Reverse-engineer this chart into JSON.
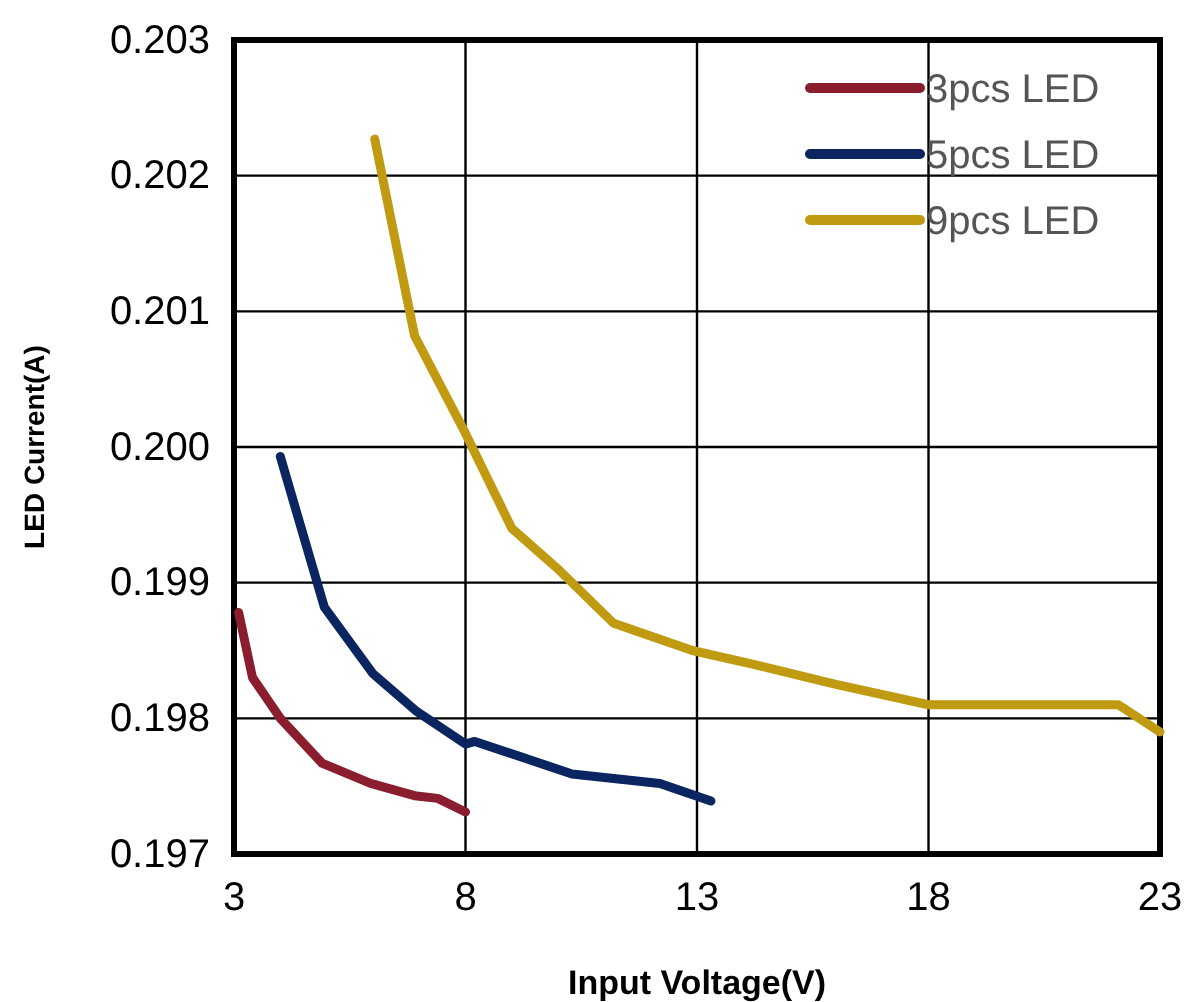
{
  "chart_data": {
    "type": "line",
    "xlabel": "Input Voltage(V)",
    "ylabel": "LED Current(A)",
    "xlim": [
      3,
      23
    ],
    "xticks": [
      3,
      8,
      13,
      18,
      23
    ],
    "ylim": [
      0.197,
      0.203
    ],
    "yticks": [
      {
        "value": 0.197,
        "label": "0.197"
      },
      {
        "value": 0.198,
        "label": "0.198"
      },
      {
        "value": 0.199,
        "label": "0.199"
      },
      {
        "value": 0.2,
        "label": "0.200"
      },
      {
        "value": 0.201,
        "label": "0.201"
      },
      {
        "value": 0.202,
        "label": "0.202"
      },
      {
        "value": 0.203,
        "label": "0.203"
      }
    ],
    "grid": true,
    "legend": "top right",
    "marker": "none",
    "line_style": "solid",
    "series": [
      {
        "name": "3pcs LED",
        "color": "#8b1e2e",
        "x": [
          3.1,
          3.4,
          4.0,
          4.9,
          5.95,
          6.9,
          7.4,
          8.0
        ],
        "values": [
          0.19878,
          0.1983,
          0.198,
          0.19767,
          0.19752,
          0.19743,
          0.19741,
          0.19731
        ]
      },
      {
        "name": "5pcs LED",
        "color": "#0a2560",
        "x": [
          4.0,
          4.95,
          6.0,
          6.95,
          8.0,
          8.2,
          10.3,
          12.2,
          13.3
        ],
        "values": [
          0.19993,
          0.19882,
          0.19833,
          0.19805,
          0.19781,
          0.19783,
          0.19759,
          0.19752,
          0.19739
        ]
      },
      {
        "name": "9pcs LED",
        "color": "#c09a10",
        "x": [
          6.04,
          6.9,
          8.0,
          9.0,
          10.0,
          11.2,
          12.9,
          14.2,
          16.0,
          18.0,
          22.1,
          23.0
        ],
        "values": [
          0.20227,
          0.20082,
          0.2001,
          0.1994,
          0.1991,
          0.1987,
          0.1985,
          0.1984,
          0.19825,
          0.1981,
          0.1981,
          0.1979
        ]
      }
    ]
  }
}
